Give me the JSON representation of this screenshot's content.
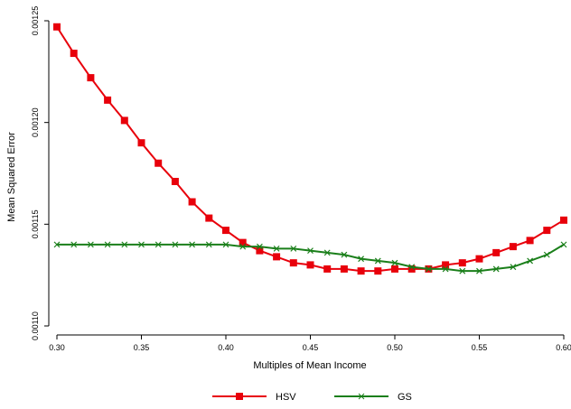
{
  "chart_data": {
    "type": "line",
    "x": [
      0.3,
      0.31,
      0.32,
      0.33,
      0.34,
      0.35,
      0.36,
      0.37,
      0.38,
      0.39,
      0.4,
      0.41,
      0.42,
      0.43,
      0.44,
      0.45,
      0.46,
      0.47,
      0.48,
      0.49,
      0.5,
      0.51,
      0.52,
      0.53,
      0.54,
      0.55,
      0.56,
      0.57,
      0.58,
      0.59,
      0.6
    ],
    "series": [
      {
        "name": "HSV",
        "color": "#e8000b",
        "marker": "square",
        "values": [
          0.001247,
          0.001234,
          0.001222,
          0.001211,
          0.001201,
          0.00119,
          0.00118,
          0.001171,
          0.001161,
          0.001153,
          0.001147,
          0.001141,
          0.001137,
          0.001134,
          0.001131,
          0.00113,
          0.001128,
          0.001128,
          0.001127,
          0.001127,
          0.001128,
          0.001128,
          0.001128,
          0.00113,
          0.001131,
          0.001133,
          0.001136,
          0.001139,
          0.001142,
          0.001147,
          0.001152
        ]
      },
      {
        "name": "GS",
        "color": "#1a7f1a",
        "marker": "x",
        "values": [
          0.00114,
          0.00114,
          0.00114,
          0.00114,
          0.00114,
          0.00114,
          0.00114,
          0.00114,
          0.00114,
          0.00114,
          0.00114,
          0.001139,
          0.001139,
          0.001138,
          0.001138,
          0.001137,
          0.001136,
          0.001135,
          0.001133,
          0.001132,
          0.001131,
          0.001129,
          0.001128,
          0.001128,
          0.001127,
          0.001127,
          0.001128,
          0.001129,
          0.001132,
          0.001135,
          0.00114
        ]
      }
    ],
    "xlabel": "Multiples of Mean Income",
    "ylabel": "Mean Squared Error",
    "xlim": [
      0.3,
      0.6
    ],
    "ylim": [
      0.0011,
      0.00125
    ],
    "xticks": [
      {
        "value": 0.3,
        "label": "0.30"
      },
      {
        "value": 0.35,
        "label": "0.35"
      },
      {
        "value": 0.4,
        "label": "0.40"
      },
      {
        "value": 0.45,
        "label": "0.45"
      },
      {
        "value": 0.5,
        "label": "0.50"
      },
      {
        "value": 0.55,
        "label": "0.55"
      },
      {
        "value": 0.6,
        "label": "0.60"
      }
    ],
    "yticks": [
      {
        "value": 0.0011,
        "label": "0.00110"
      },
      {
        "value": 0.00115,
        "label": "0.00115"
      },
      {
        "value": 0.0012,
        "label": "0.00120"
      },
      {
        "value": 0.00125,
        "label": "0.00125"
      }
    ],
    "legend": "bottom"
  }
}
